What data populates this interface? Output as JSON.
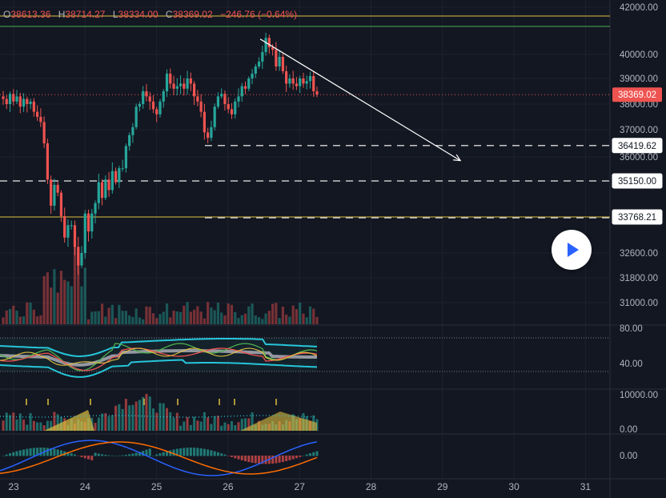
{
  "ohlc_bar": {
    "open_label": "O",
    "open": "38613.36",
    "high_label": "H",
    "high": "38714.27",
    "low_label": "L",
    "low": "38334.00",
    "close_label": "C",
    "close": "38369.02",
    "change": "−246.76 (−0.64%)"
  },
  "colors": {
    "up": "#26a69a",
    "down": "#ef5350",
    "background": "#131722",
    "grid": "#1e222d",
    "accent": "#2962ff",
    "level_line": "#c8c8c8",
    "yellow_line": "#e0c040"
  },
  "play_button": {
    "icon": "play-icon"
  },
  "chart_data": [
    {
      "type": "candlestick",
      "xlabel": "",
      "ylabel": "",
      "x_ticks": [
        "23",
        "24",
        "25",
        "26",
        "27",
        "28",
        "29",
        "30",
        "31"
      ],
      "y_ticks": [
        "42000.00",
        "40000.00",
        "39000.00",
        "38000.00",
        "37000.00",
        "36000.00",
        "32600.00",
        "31800.00",
        "31000.00"
      ],
      "ylim": [
        30600,
        42000
      ],
      "price_labels": [
        {
          "name": "last-price",
          "value": "38369.02",
          "style": "red-badge"
        },
        {
          "name": "level-1",
          "value": "36419.62",
          "style": "dashed"
        },
        {
          "name": "level-2",
          "value": "35150.00",
          "style": "dashed"
        },
        {
          "name": "level-3",
          "value": "33768.21",
          "style": "yellow-solid"
        }
      ],
      "trendline": {
        "from": {
          "x": 26.45,
          "y": 40650
        },
        "to": {
          "x": 29.25,
          "y": 35870
        }
      },
      "closes": [
        38200,
        38000,
        38400,
        38100,
        38300,
        37900,
        38200,
        38000,
        38100,
        37700,
        37500,
        37300,
        36500,
        35200,
        34200,
        35000,
        34700,
        33800,
        33100,
        33500,
        33500,
        32800,
        32200,
        32600,
        33900,
        33300,
        33900,
        34300,
        35100,
        34500,
        35200,
        34800,
        35500,
        35100,
        35600,
        35600,
        36400,
        36800,
        37100,
        37900,
        38000,
        38500,
        38300,
        38100,
        37800,
        37600,
        38100,
        38500,
        39200,
        38800,
        38600,
        38700,
        38800,
        38600,
        39000,
        38800,
        38300,
        38100,
        37700,
        36900,
        36700,
        37100,
        37900,
        38300,
        38400,
        38000,
        37800,
        37600,
        38100,
        38300,
        38700,
        38600,
        39000,
        39200,
        39500,
        39700,
        40100,
        40700,
        40300,
        40200,
        39500,
        39900,
        39300,
        38800,
        39000,
        38800,
        38700,
        39000,
        38800,
        38900,
        39100,
        38500,
        38369
      ]
    },
    {
      "type": "line",
      "name": "oscillator-band",
      "y_ticks": [
        "80.00",
        "40.00"
      ],
      "ylim": [
        20,
        85
      ]
    },
    {
      "type": "bar",
      "name": "volume-histogram",
      "y_ticks": [
        "10000.00",
        "0.00"
      ],
      "ylim": [
        0,
        12000
      ]
    },
    {
      "type": "bar",
      "name": "macd-histogram",
      "y_ticks": [
        "0.00"
      ]
    }
  ]
}
